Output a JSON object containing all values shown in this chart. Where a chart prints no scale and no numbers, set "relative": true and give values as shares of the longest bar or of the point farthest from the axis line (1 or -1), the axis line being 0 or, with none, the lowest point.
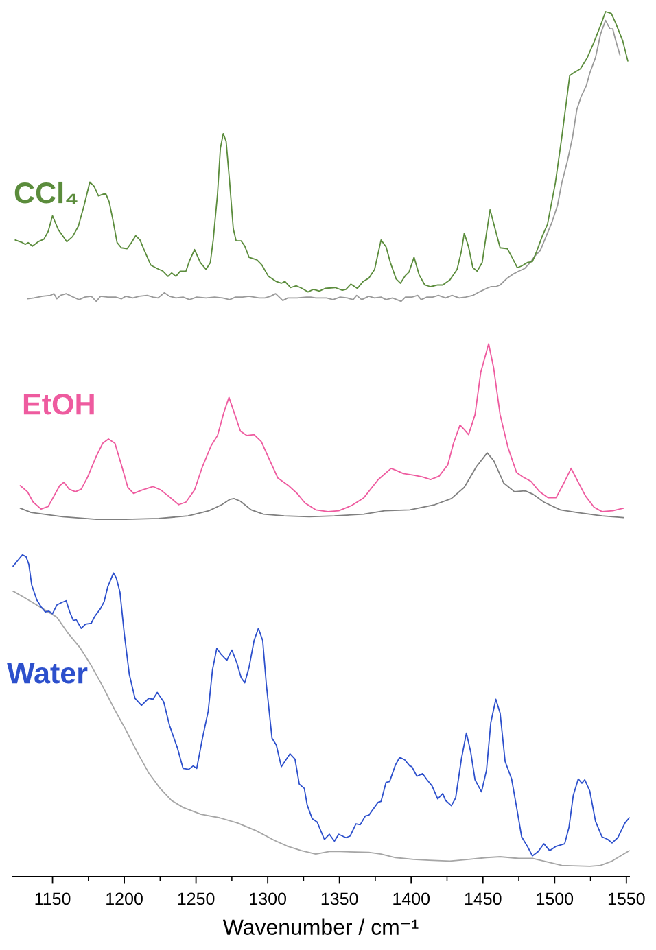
{
  "chart_data": {
    "type": "line",
    "xlabel": "Wavenumber / cm⁻¹",
    "relative": true,
    "xlim": [
      1122,
      1552
    ],
    "xticks": [
      1150,
      {
        "value": 1175,
        "label": null
      },
      1200,
      {
        "value": 1225,
        "label": null
      },
      1250,
      {
        "value": 1275,
        "label": null
      },
      1300,
      {
        "value": 1325,
        "label": null
      },
      1350,
      {
        "value": 1375,
        "label": null
      },
      1400,
      {
        "value": 1425,
        "label": null
      },
      1450,
      {
        "value": 1475,
        "label": null
      },
      1500,
      {
        "value": 1525,
        "label": null
      },
      1550
    ],
    "series": [
      {
        "color": "#9a9a9a",
        "x": [
          1132.5,
          1137,
          1143,
          1148.5,
          1151,
          1153,
          1155.5,
          1159.5,
          1164.5,
          1168.5,
          1172.5,
          1177,
          1180.5,
          1183.5,
          1188.5,
          1194,
          1198,
          1201,
          1206,
          1210.5,
          1216,
          1220,
          1223.5,
          1228,
          1231.5,
          1236,
          1241,
          1245.5,
          1250.5,
          1257,
          1263,
          1268.5,
          1273.5,
          1277.5,
          1282.5,
          1287,
          1290.5,
          1294,
          1298,
          1302,
          1305.5,
          1308,
          1310.5,
          1314,
          1320.5,
          1327,
          1330,
          1333.5,
          1339.5,
          1341,
          1345.5,
          1350.5,
          1355.5,
          1359.5,
          1362,
          1365.5,
          1370.5,
          1374.5,
          1379,
          1382.5,
          1387,
          1393,
          1396,
          1400.5,
          1404.5,
          1407,
          1411,
          1415,
          1419,
          1424,
          1428.5,
          1433.5,
          1438,
          1443,
          1447.5,
          1452.5,
          1455.5,
          1459,
          1462,
          1467,
          1471.5,
          1475,
          1479,
          1483,
          1486,
          1490,
          1494,
          1498,
          1502,
          1505,
          1509,
          1512.5,
          1515.5,
          1518.5,
          1522,
          1524.5,
          1528.5,
          1532,
          1535.5,
          1538.5,
          1540.5,
          1542.5,
          1545.5
        ],
        "values": [
          0.668,
          0.669,
          0.671,
          0.672,
          0.674,
          0.668,
          0.672,
          0.674,
          0.67,
          0.667,
          0.67,
          0.671,
          0.665,
          0.671,
          0.67,
          0.67,
          0.668,
          0.671,
          0.669,
          0.671,
          0.672,
          0.67,
          0.669,
          0.675,
          0.671,
          0.669,
          0.67,
          0.667,
          0.67,
          0.669,
          0.67,
          0.669,
          0.667,
          0.67,
          0.67,
          0.671,
          0.67,
          0.669,
          0.669,
          0.671,
          0.674,
          0.67,
          0.666,
          0.669,
          0.669,
          0.67,
          0.67,
          0.669,
          0.669,
          0.669,
          0.667,
          0.67,
          0.669,
          0.667,
          0.672,
          0.667,
          0.671,
          0.669,
          0.67,
          0.667,
          0.669,
          0.665,
          0.67,
          0.67,
          0.672,
          0.667,
          0.67,
          0.67,
          0.672,
          0.669,
          0.672,
          0.669,
          0.67,
          0.672,
          0.676,
          0.68,
          0.682,
          0.682,
          0.684,
          0.692,
          0.697,
          0.7,
          0.703,
          0.71,
          0.717,
          0.724,
          0.74,
          0.756,
          0.776,
          0.802,
          0.828,
          0.855,
          0.887,
          0.902,
          0.914,
          0.929,
          0.947,
          0.974,
          0.99,
          0.98,
          0.98,
          0.967,
          0.95
        ]
      },
      {
        "name": "CCl₄",
        "color": "#5b8c3c",
        "x": [
          1124,
          1129,
          1131,
          1133,
          1136,
          1140,
          1144,
          1147,
          1150,
          1154,
          1157,
          1160,
          1164,
          1168,
          1172,
          1176,
          1179,
          1182,
          1187,
          1189.5,
          1192,
          1195,
          1198,
          1202,
          1205,
          1208,
          1211,
          1214,
          1218.5,
          1223,
          1227,
          1230.5,
          1233,
          1236,
          1239,
          1243,
          1245.5,
          1249,
          1253,
          1257,
          1260,
          1262,
          1265,
          1267,
          1269,
          1271,
          1273.5,
          1276,
          1278,
          1281.5,
          1284,
          1287,
          1292.5,
          1296,
          1300.5,
          1306,
          1309.5,
          1312,
          1316,
          1320,
          1324,
          1328,
          1332,
          1336,
          1340,
          1347,
          1352,
          1354.5,
          1358,
          1362.5,
          1366.5,
          1370.5,
          1374.5,
          1379,
          1382.5,
          1385.5,
          1389.5,
          1392.5,
          1396,
          1398.5,
          1402,
          1405.5,
          1409.5,
          1413.5,
          1418.5,
          1422,
          1427,
          1432,
          1435,
          1437,
          1440,
          1443,
          1446,
          1449.5,
          1452.5,
          1455,
          1458,
          1462,
          1467,
          1470,
          1474,
          1477,
          1481,
          1484.5,
          1487.5,
          1491.5,
          1495,
          1500.5,
          1505,
          1508.5,
          1510.5,
          1513,
          1518,
          1522.5,
          1527.5,
          1532,
          1535.5,
          1539.5,
          1542.5,
          1547.5,
          1551
        ],
        "values": [
          0.736,
          0.733,
          0.731,
          0.733,
          0.729,
          0.734,
          0.737,
          0.746,
          0.764,
          0.748,
          0.741,
          0.734,
          0.74,
          0.752,
          0.776,
          0.803,
          0.798,
          0.787,
          0.79,
          0.78,
          0.76,
          0.733,
          0.727,
          0.726,
          0.733,
          0.741,
          0.736,
          0.724,
          0.707,
          0.703,
          0.7,
          0.694,
          0.698,
          0.694,
          0.7,
          0.7,
          0.712,
          0.725,
          0.71,
          0.702,
          0.71,
          0.736,
          0.789,
          0.842,
          0.859,
          0.85,
          0.802,
          0.749,
          0.735,
          0.735,
          0.729,
          0.716,
          0.713,
          0.707,
          0.694,
          0.688,
          0.686,
          0.688,
          0.681,
          0.683,
          0.68,
          0.676,
          0.679,
          0.677,
          0.68,
          0.681,
          0.678,
          0.679,
          0.685,
          0.68,
          0.688,
          0.692,
          0.702,
          0.736,
          0.728,
          0.71,
          0.691,
          0.686,
          0.695,
          0.699,
          0.716,
          0.696,
          0.684,
          0.682,
          0.684,
          0.684,
          0.69,
          0.702,
          0.723,
          0.744,
          0.728,
          0.704,
          0.7,
          0.71,
          0.744,
          0.771,
          0.752,
          0.727,
          0.726,
          0.717,
          0.704,
          0.706,
          0.71,
          0.711,
          0.723,
          0.741,
          0.754,
          0.802,
          0.855,
          0.9,
          0.926,
          0.929,
          0.934,
          0.946,
          0.965,
          0.984,
          1.0,
          0.998,
          0.987,
          0.966,
          0.943
        ]
      },
      {
        "color": "#7f7f7f",
        "x": [
          1127.5,
          1135,
          1157,
          1180.5,
          1201,
          1224,
          1244.5,
          1259,
          1268,
          1273.5,
          1276.5,
          1281,
          1288.5,
          1297,
          1311.5,
          1329,
          1346.5,
          1367,
          1381.5,
          1399,
          1416.5,
          1428,
          1437,
          1445.5,
          1453,
          1457.5,
          1464.5,
          1472,
          1479.5,
          1485,
          1492.5,
          1504,
          1515.5,
          1533,
          1548
        ],
        "values": [
          0.426,
          0.421,
          0.416,
          0.413,
          0.413,
          0.414,
          0.417,
          0.423,
          0.43,
          0.436,
          0.437,
          0.434,
          0.424,
          0.419,
          0.417,
          0.416,
          0.417,
          0.419,
          0.423,
          0.424,
          0.43,
          0.437,
          0.45,
          0.474,
          0.49,
          0.481,
          0.455,
          0.445,
          0.446,
          0.442,
          0.433,
          0.424,
          0.421,
          0.417,
          0.415
        ]
      },
      {
        "name": "EtOH",
        "color": "#ee5b9f",
        "x": [
          1127.5,
          1132.5,
          1136.5,
          1142,
          1147,
          1151,
          1155,
          1158,
          1161.5,
          1166,
          1170,
          1174.5,
          1180.5,
          1185,
          1189,
          1193.5,
          1198,
          1202.5,
          1206.5,
          1212.5,
          1220,
          1225.5,
          1231.5,
          1238,
          1243,
          1249,
          1254.5,
          1260.5,
          1265,
          1269.5,
          1273,
          1276.5,
          1281,
          1285.5,
          1290.5,
          1295.5,
          1301.5,
          1307,
          1314.5,
          1320.5,
          1326,
          1333.5,
          1342,
          1349.5,
          1358.5,
          1367,
          1377,
          1386,
          1390.5,
          1394.5,
          1402,
          1408,
          1413.5,
          1419.5,
          1425.5,
          1429.5,
          1434,
          1437,
          1440,
          1444.5,
          1448.5,
          1454,
          1457.5,
          1462,
          1467.5,
          1473.5,
          1478,
          1483.5,
          1489.5,
          1495.5,
          1501,
          1505.5,
          1511.5,
          1515.5,
          1521.5,
          1527.5,
          1533,
          1540.5,
          1548
        ],
        "values": [
          0.452,
          0.445,
          0.433,
          0.425,
          0.428,
          0.44,
          0.452,
          0.456,
          0.448,
          0.445,
          0.448,
          0.462,
          0.486,
          0.501,
          0.506,
          0.501,
          0.476,
          0.45,
          0.443,
          0.447,
          0.451,
          0.447,
          0.439,
          0.43,
          0.433,
          0.447,
          0.474,
          0.498,
          0.51,
          0.537,
          0.554,
          0.537,
          0.515,
          0.51,
          0.511,
          0.503,
          0.481,
          0.461,
          0.452,
          0.443,
          0.432,
          0.424,
          0.422,
          0.423,
          0.429,
          0.438,
          0.459,
          0.472,
          0.469,
          0.466,
          0.464,
          0.462,
          0.459,
          0.463,
          0.476,
          0.501,
          0.522,
          0.517,
          0.511,
          0.534,
          0.583,
          0.616,
          0.588,
          0.534,
          0.496,
          0.467,
          0.462,
          0.457,
          0.445,
          0.438,
          0.438,
          0.452,
          0.472,
          0.459,
          0.44,
          0.427,
          0.422,
          0.423,
          0.426
        ]
      },
      {
        "color": "#a6a6a6",
        "x": [
          1122.5,
          1129,
          1137,
          1145,
          1153,
          1161,
          1169,
          1177,
          1185,
          1193,
          1201,
          1209,
          1217,
          1225,
          1233,
          1241,
          1253.5,
          1266.5,
          1279,
          1292,
          1304.5,
          1314,
          1323.5,
          1333.5,
          1343,
          1350.5,
          1370.5,
          1379,
          1389,
          1401.5,
          1412.5,
          1427,
          1440,
          1452.5,
          1462,
          1475,
          1485,
          1492.5,
          1505,
          1524.5,
          1532,
          1540,
          1548,
          1552
        ],
        "values": [
          0.33,
          0.324,
          0.316,
          0.308,
          0.3,
          0.281,
          0.265,
          0.244,
          0.22,
          0.194,
          0.17,
          0.144,
          0.12,
          0.102,
          0.088,
          0.08,
          0.072,
          0.068,
          0.062,
          0.053,
          0.042,
          0.035,
          0.03,
          0.026,
          0.029,
          0.029,
          0.028,
          0.026,
          0.022,
          0.02,
          0.019,
          0.018,
          0.02,
          0.022,
          0.023,
          0.021,
          0.021,
          0.018,
          0.013,
          0.012,
          0.013,
          0.018,
          0.026,
          0.03
        ]
      },
      {
        "name": "Water",
        "color": "#2d50cc",
        "x": [
          1122.5,
          1125.5,
          1129,
          1131.5,
          1133.5,
          1135.5,
          1139,
          1142,
          1145,
          1147.5,
          1150,
          1153,
          1156.5,
          1159.5,
          1162,
          1164.5,
          1166.5,
          1170,
          1173,
          1177,
          1179.5,
          1183.5,
          1186,
          1188.5,
          1192.5,
          1194.5,
          1197,
          1200,
          1203.5,
          1207.5,
          1212,
          1217,
          1220,
          1223,
          1227.5,
          1231.5,
          1237,
          1241,
          1245,
          1248,
          1250.5,
          1254.5,
          1258.5,
          1261.5,
          1264.5,
          1267.5,
          1271.5,
          1275,
          1278.5,
          1281.5,
          1284,
          1287,
          1290.5,
          1293.5,
          1296.5,
          1299,
          1303,
          1306,
          1309.5,
          1315.5,
          1319,
          1322,
          1325.5,
          1327.5,
          1331,
          1334.5,
          1339.5,
          1343,
          1346.5,
          1349.5,
          1354.5,
          1357.5,
          1361.5,
          1364.5,
          1368,
          1370.5,
          1373.5,
          1377,
          1379,
          1382.5,
          1385,
          1389,
          1392,
          1395.5,
          1399,
          1400.5,
          1404,
          1408,
          1411,
          1414.5,
          1418.5,
          1422,
          1424,
          1428,
          1431,
          1435,
          1438.5,
          1441.5,
          1444.5,
          1449,
          1452.5,
          1455.5,
          1459,
          1462,
          1465.5,
          1470,
          1473.5,
          1477,
          1481,
          1484.5,
          1488.5,
          1492.5,
          1496.5,
          1501,
          1507,
          1510,
          1513,
          1516.5,
          1519,
          1521,
          1524.5,
          1528.5,
          1533,
          1537,
          1540,
          1544,
          1549,
          1552
        ],
        "values": [
          0.359,
          0.365,
          0.372,
          0.37,
          0.361,
          0.337,
          0.32,
          0.312,
          0.306,
          0.307,
          0.304,
          0.314,
          0.317,
          0.319,
          0.306,
          0.296,
          0.297,
          0.287,
          0.292,
          0.293,
          0.301,
          0.31,
          0.318,
          0.335,
          0.351,
          0.345,
          0.329,
          0.281,
          0.234,
          0.206,
          0.198,
          0.206,
          0.205,
          0.213,
          0.202,
          0.175,
          0.149,
          0.125,
          0.124,
          0.128,
          0.125,
          0.16,
          0.191,
          0.239,
          0.264,
          0.257,
          0.25,
          0.262,
          0.247,
          0.23,
          0.224,
          0.242,
          0.273,
          0.287,
          0.273,
          0.223,
          0.16,
          0.152,
          0.127,
          0.142,
          0.136,
          0.107,
          0.102,
          0.083,
          0.067,
          0.063,
          0.043,
          0.049,
          0.041,
          0.049,
          0.045,
          0.047,
          0.061,
          0.06,
          0.07,
          0.071,
          0.078,
          0.086,
          0.087,
          0.109,
          0.11,
          0.129,
          0.138,
          0.135,
          0.128,
          0.127,
          0.116,
          0.119,
          0.112,
          0.105,
          0.09,
          0.096,
          0.088,
          0.082,
          0.091,
          0.136,
          0.166,
          0.144,
          0.112,
          0.098,
          0.123,
          0.178,
          0.205,
          0.189,
          0.133,
          0.113,
          0.08,
          0.046,
          0.035,
          0.024,
          0.029,
          0.038,
          0.03,
          0.035,
          0.038,
          0.057,
          0.094,
          0.113,
          0.108,
          0.112,
          0.099,
          0.064,
          0.046,
          0.043,
          0.039,
          0.045,
          0.062,
          0.068
        ]
      }
    ]
  }
}
